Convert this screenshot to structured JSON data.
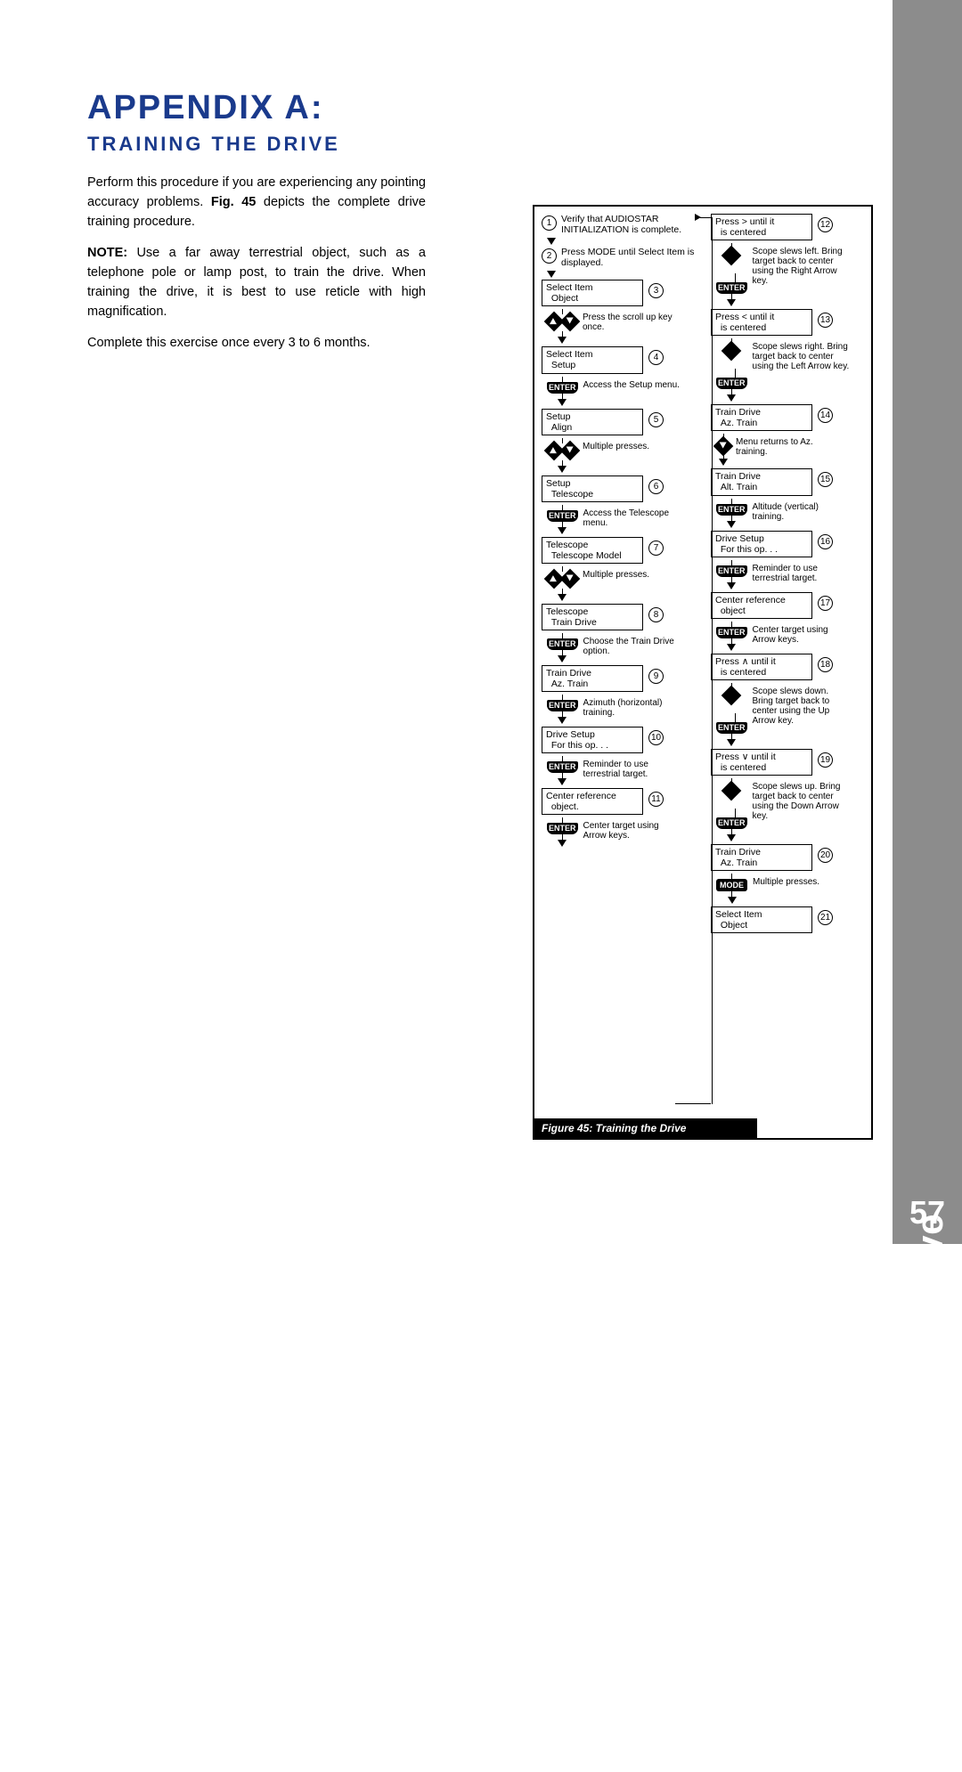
{
  "sideTab": "Appendix A: Training the Drive",
  "pageNumber": "57",
  "heading": "APPENDIX A:",
  "subheading": "TRAINING THE DRIVE",
  "paragraphs": [
    "Perform this procedure if you are experiencing any pointing accuracy problems. <b>Fig. 45</b> depicts the complete drive training procedure.",
    "<b>NOTE:</b> Use a far away terrestrial object, such as a telephone pole or lamp post, to train the drive. When training the drive, it is best to use reticle with high magnification.",
    "Complete this exercise once every 3 to 6 months."
  ],
  "figureCaption": "Figure 45:  Training the Drive",
  "colors": {
    "brand": "#1a3a8c",
    "tab": "#8c8c8c"
  },
  "colA": [
    {
      "n": "1",
      "type": "plain",
      "text": "Verify that AUDIOSTAR INITIALIZATION is complete.",
      "numLeft": true
    },
    {
      "n": "2",
      "type": "plain",
      "text": "Press MODE until Select Item is displayed.",
      "numLeft": true
    },
    {
      "n": "3",
      "type": "box",
      "l1": "Select Item",
      "l2": "Object",
      "after": "Press the scroll up key once.",
      "key": "updn"
    },
    {
      "n": "4",
      "type": "box",
      "l1": "Select Item",
      "l2": "Setup",
      "after": "Access the Setup menu.",
      "key": "ENTER"
    },
    {
      "n": "5",
      "type": "box",
      "l1": "Setup",
      "l2": "Align",
      "after": "Multiple presses.",
      "key": "updn"
    },
    {
      "n": "6",
      "type": "box",
      "l1": "Setup",
      "l2": "Telescope",
      "after": "Access the Telescope menu.",
      "key": "ENTER"
    },
    {
      "n": "7",
      "type": "box",
      "l1": "Telescope",
      "l2": "Telescope Model",
      "after": "Multiple presses.",
      "key": "updn"
    },
    {
      "n": "8",
      "type": "box",
      "l1": "Telescope",
      "l2": "Train Drive",
      "after": "Choose the Train Drive option.",
      "key": "ENTER"
    },
    {
      "n": "9",
      "type": "box",
      "l1": "Train Drive",
      "l2": "Az. Train",
      "after": "Azimuth (horizontal) training.",
      "key": "ENTER"
    },
    {
      "n": "10",
      "type": "box",
      "l1": "Drive Setup",
      "l2": "For this op. . .",
      "after": "Reminder to use terrestrial target.",
      "key": "ENTER"
    },
    {
      "n": "11",
      "type": "box",
      "l1": "Center reference",
      "l2": "object.",
      "after": "Center target using Arrow keys.",
      "key": "ENTER"
    }
  ],
  "colB": [
    {
      "n": "12",
      "type": "box",
      "l1": "Press  >  until it",
      "l2": "is centered",
      "after": "Scope slews left. Bring target back to center using the Right Arrow key.",
      "key": "diamond+ENTER"
    },
    {
      "n": "13",
      "type": "box",
      "l1": "Press  <  until it",
      "l2": "is centered",
      "after": "Scope slews right. Bring target back to center using the Left Arrow key.",
      "key": "diamond+ENTER"
    },
    {
      "n": "14",
      "type": "box",
      "l1": "Train Drive",
      "l2": "Az. Train",
      "after": "Menu returns to Az. training.",
      "key": "dn"
    },
    {
      "n": "15",
      "type": "box",
      "l1": "Train Drive",
      "l2": "Alt. Train",
      "after": "Altitude (vertical) training.",
      "key": "ENTER"
    },
    {
      "n": "16",
      "type": "box",
      "l1": "Drive Setup",
      "l2": "For this op. . .",
      "after": "Reminder to use terrestrial target.",
      "key": "ENTER"
    },
    {
      "n": "17",
      "type": "box",
      "l1": "Center reference",
      "l2": "object",
      "after": "Center target using Arrow keys.",
      "key": "ENTER"
    },
    {
      "n": "18",
      "type": "box",
      "l1": "Press  ∧  until it",
      "l2": "is centered",
      "after": "Scope slews down. Bring target back to center using the Up Arrow key.",
      "key": "diamond+ENTER"
    },
    {
      "n": "19",
      "type": "box",
      "l1": "Press  ∨  until it",
      "l2": "is centered",
      "after": "Scope slews up. Bring target back to center using the Down Arrow key.",
      "key": "diamond+ENTER"
    },
    {
      "n": "20",
      "type": "box",
      "l1": "Train Drive",
      "l2": "Az. Train",
      "after": "Multiple presses.",
      "key": "MODE"
    },
    {
      "n": "21",
      "type": "box",
      "l1": "Select Item",
      "l2": "Object",
      "after": "",
      "key": ""
    }
  ]
}
